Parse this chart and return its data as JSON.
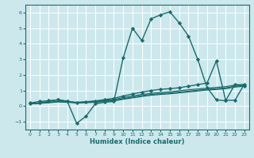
{
  "xlabel": "Humidex (Indice chaleur)",
  "xlim": [
    -0.5,
    23.5
  ],
  "ylim": [
    -1.5,
    6.5
  ],
  "yticks": [
    -1,
    0,
    1,
    2,
    3,
    4,
    5,
    6
  ],
  "xticks": [
    0,
    1,
    2,
    3,
    4,
    5,
    6,
    7,
    8,
    9,
    10,
    11,
    12,
    13,
    14,
    15,
    16,
    17,
    18,
    19,
    20,
    21,
    22,
    23
  ],
  "bg_color": "#cce8ed",
  "grid_color": "#b0d8e0",
  "line_color": "#1a6b6b",
  "lines": [
    {
      "x": [
        0,
        1,
        2,
        3,
        4,
        5,
        6,
        7,
        8,
        9,
        10,
        11,
        12,
        13,
        14,
        15,
        16,
        17,
        18,
        19,
        20,
        21,
        22,
        23
      ],
      "y": [
        0.2,
        0.3,
        0.35,
        0.4,
        0.3,
        -1.1,
        -0.65,
        0.15,
        0.25,
        0.3,
        3.1,
        5.0,
        4.2,
        5.6,
        5.85,
        6.05,
        5.35,
        4.5,
        3.0,
        1.2,
        0.4,
        0.35,
        1.4,
        1.3
      ],
      "marker": "D",
      "markersize": 2.2,
      "linewidth": 1.0,
      "linestyle": "-"
    },
    {
      "x": [
        0,
        1,
        2,
        3,
        4,
        5,
        6,
        7,
        8,
        9,
        10,
        11,
        12,
        13,
        14,
        15,
        16,
        17,
        18,
        19,
        20,
        21,
        22,
        23
      ],
      "y": [
        0.15,
        0.2,
        0.25,
        0.3,
        0.28,
        0.25,
        0.28,
        0.32,
        0.38,
        0.42,
        0.55,
        0.65,
        0.75,
        0.82,
        0.88,
        0.92,
        0.98,
        1.05,
        1.1,
        1.15,
        1.2,
        1.25,
        1.35,
        1.4
      ],
      "marker": null,
      "linewidth": 0.9,
      "linestyle": "-"
    },
    {
      "x": [
        0,
        1,
        2,
        3,
        4,
        5,
        6,
        7,
        8,
        9,
        10,
        11,
        12,
        13,
        14,
        15,
        16,
        17,
        18,
        19,
        20,
        21,
        22,
        23
      ],
      "y": [
        0.15,
        0.2,
        0.25,
        0.3,
        0.28,
        0.22,
        0.25,
        0.28,
        0.33,
        0.37,
        0.48,
        0.58,
        0.68,
        0.75,
        0.8,
        0.84,
        0.9,
        0.96,
        1.02,
        1.08,
        1.12,
        1.17,
        1.28,
        1.34
      ],
      "marker": null,
      "linewidth": 0.9,
      "linestyle": "-"
    },
    {
      "x": [
        0,
        1,
        2,
        3,
        4,
        5,
        6,
        7,
        8,
        9,
        10,
        11,
        12,
        13,
        14,
        15,
        16,
        17,
        18,
        19,
        20,
        21,
        22,
        23
      ],
      "y": [
        0.15,
        0.18,
        0.22,
        0.27,
        0.25,
        0.2,
        0.22,
        0.25,
        0.3,
        0.34,
        0.44,
        0.53,
        0.62,
        0.7,
        0.75,
        0.79,
        0.85,
        0.91,
        0.97,
        1.03,
        1.07,
        1.12,
        1.22,
        1.28
      ],
      "marker": null,
      "linewidth": 0.9,
      "linestyle": "-"
    },
    {
      "x": [
        0,
        1,
        2,
        3,
        4,
        5,
        6,
        7,
        8,
        9,
        10,
        11,
        12,
        13,
        14,
        15,
        16,
        17,
        18,
        19,
        20,
        21,
        22,
        23
      ],
      "y": [
        0.15,
        0.2,
        0.3,
        0.42,
        0.32,
        0.22,
        0.28,
        0.33,
        0.42,
        0.5,
        0.65,
        0.78,
        0.9,
        1.0,
        1.08,
        1.12,
        1.18,
        1.28,
        1.38,
        1.48,
        2.9,
        0.38,
        0.38,
        1.4
      ],
      "marker": "D",
      "markersize": 2.2,
      "linewidth": 1.0,
      "linestyle": "-"
    }
  ]
}
